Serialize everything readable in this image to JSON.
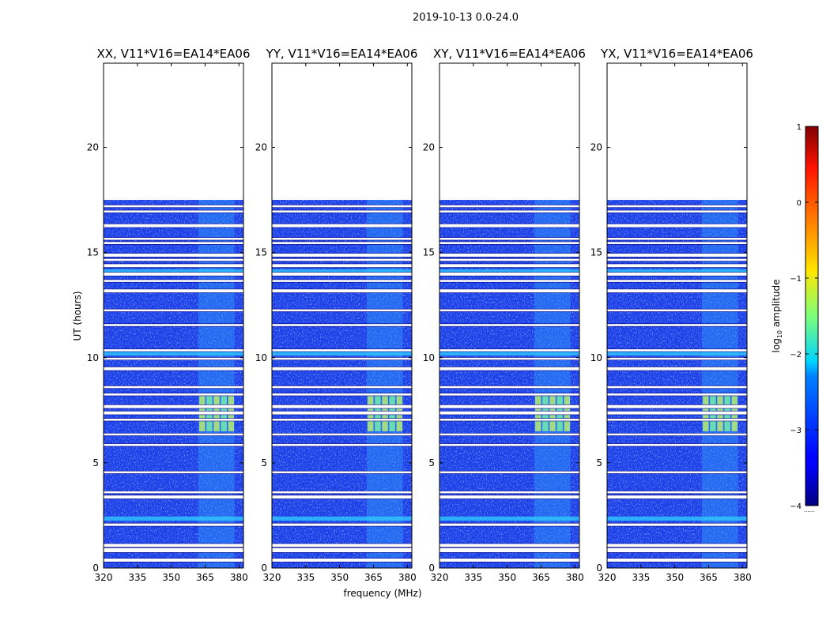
{
  "figure": {
    "suptitle": "2019-10-13 0.0-24.0",
    "colormap": "jet"
  },
  "chart_data": {
    "type": "heatmap",
    "xlabel": "frequency (MHz)",
    "ylabel": "UT (hours)",
    "xlim": [
      320,
      382
    ],
    "ylim": [
      0,
      24
    ],
    "xticks": [
      320,
      335,
      350,
      365,
      380
    ],
    "yticks": [
      0,
      5,
      10,
      15,
      20
    ],
    "panels": [
      {
        "title": "XX, V11*V16=EA14*EA06"
      },
      {
        "title": "YY, V11*V16=EA14*EA06"
      },
      {
        "title": "XY, V11*V16=EA14*EA06"
      },
      {
        "title": "YX, V11*V16=EA14*EA06"
      }
    ],
    "data_coverage_hours": [
      0,
      17.5
    ],
    "flagged_rows_hours": [
      [
        0.3,
        0.45
      ],
      [
        0.75,
        0.95
      ],
      [
        1.0,
        1.15
      ],
      [
        2.0,
        2.12
      ],
      [
        3.3,
        3.45
      ],
      [
        3.55,
        3.65
      ],
      [
        4.5,
        4.6
      ],
      [
        5.8,
        5.9
      ],
      [
        6.3,
        6.4
      ],
      [
        7.0,
        7.1
      ],
      [
        7.3,
        7.45
      ],
      [
        7.6,
        7.75
      ],
      [
        8.2,
        8.3
      ],
      [
        8.55,
        8.65
      ],
      [
        9.4,
        9.55
      ],
      [
        9.9,
        10.0
      ],
      [
        10.3,
        10.4
      ],
      [
        11.5,
        11.6
      ],
      [
        12.2,
        12.3
      ],
      [
        13.1,
        13.25
      ],
      [
        13.6,
        13.7
      ],
      [
        13.9,
        14.05
      ],
      [
        14.3,
        14.45
      ],
      [
        14.6,
        14.7
      ],
      [
        14.8,
        14.95
      ],
      [
        15.4,
        15.5
      ],
      [
        15.6,
        15.7
      ],
      [
        16.2,
        16.35
      ],
      [
        16.9,
        17.0
      ],
      [
        17.15,
        17.25
      ]
    ],
    "bright_rows_hours": [
      [
        2.25,
        2.45
      ],
      [
        10.1,
        10.3
      ],
      [
        14.05,
        14.2
      ]
    ],
    "rfi_band_mhz": [
      362,
      378
    ],
    "rfi_peak_hours": [
      6.5,
      8.2
    ],
    "colorbar": {
      "label_prefix": "log",
      "label_sub": "10",
      "label_suffix": " amplitude",
      "min": -4,
      "max": 1,
      "ticks": [
        -4,
        -3,
        -2,
        -1,
        0,
        1
      ],
      "tick_labels": [
        "−4",
        "−3",
        "−2",
        "−1",
        "0",
        "1"
      ],
      "under_marker": "......"
    }
  }
}
